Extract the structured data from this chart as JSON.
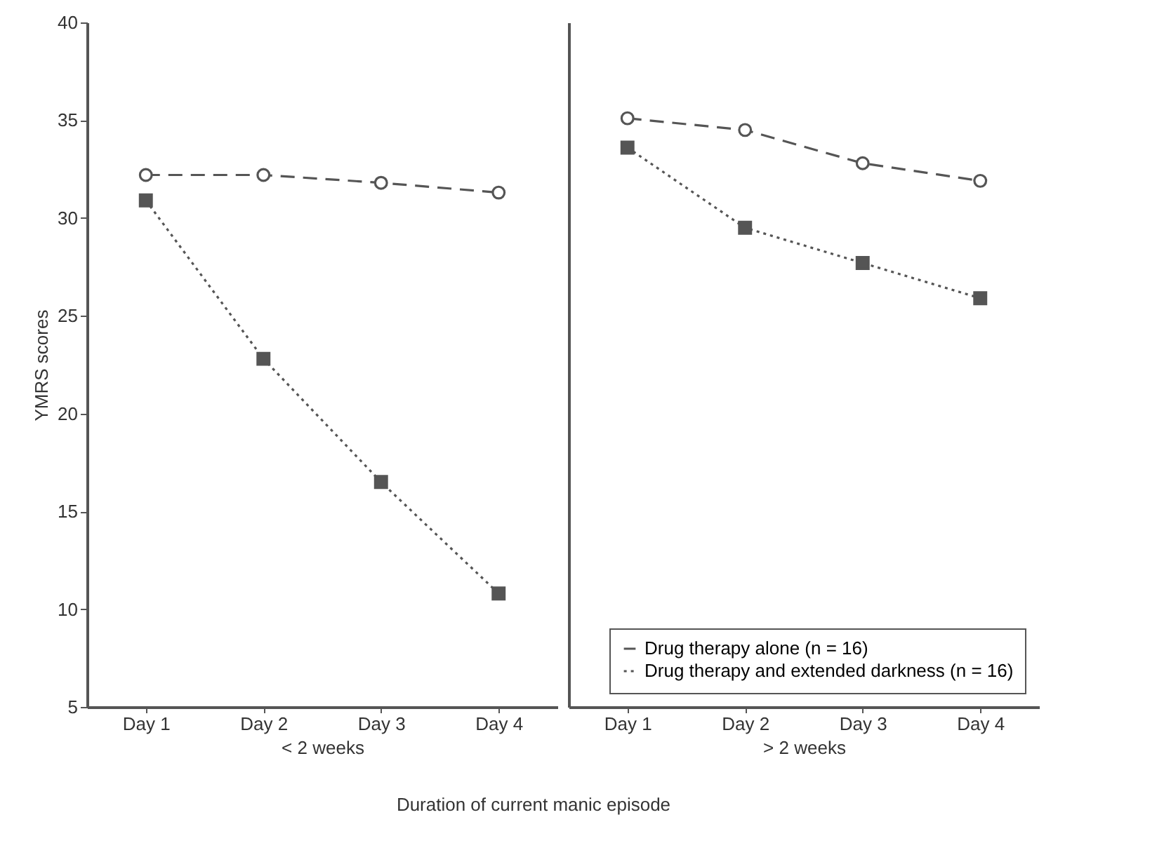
{
  "chart_data": [
    {
      "type": "line",
      "xlabel": "< 2 weeks",
      "ylabel": "YMRS scores",
      "categories": [
        "Day 1",
        "Day 2",
        "Day 3",
        "Day 4"
      ],
      "ylim": [
        5,
        40
      ],
      "yticks": [
        5,
        10,
        15,
        20,
        25,
        30,
        35,
        40
      ],
      "grid": false,
      "legend": false,
      "series": [
        {
          "color": "#555555",
          "marker": "circle",
          "line_style": "dashed",
          "values": [
            32.2,
            32.2,
            31.8,
            31.3
          ]
        },
        {
          "color": "#555555",
          "marker": "square",
          "line_style": "dotted",
          "values": [
            30.9,
            22.8,
            16.5,
            10.8
          ]
        }
      ]
    },
    {
      "type": "line",
      "xlabel": "> 2 weeks",
      "categories": [
        "Day 1",
        "Day 2",
        "Day 3",
        "Day 4"
      ],
      "ylim": [
        5,
        40
      ],
      "yticks": [
        5,
        10,
        15,
        20,
        25,
        30,
        35,
        40
      ],
      "tick_labels": "x",
      "grid": false,
      "legend": "bottom right",
      "annotations": [
        "Duration of current manic episode"
      ],
      "series": [
        {
          "name": "Drug therapy alone (n = 16)",
          "color": "#555555",
          "marker": "circle",
          "line_style": "dashed",
          "values": [
            35.1,
            34.5,
            32.8,
            31.9
          ]
        },
        {
          "name": "Drug therapy and extended darkness (n = 16)",
          "color": "#555555",
          "marker": "square",
          "line_style": "dotted",
          "values": [
            33.6,
            29.5,
            27.7,
            25.9
          ]
        }
      ]
    }
  ]
}
